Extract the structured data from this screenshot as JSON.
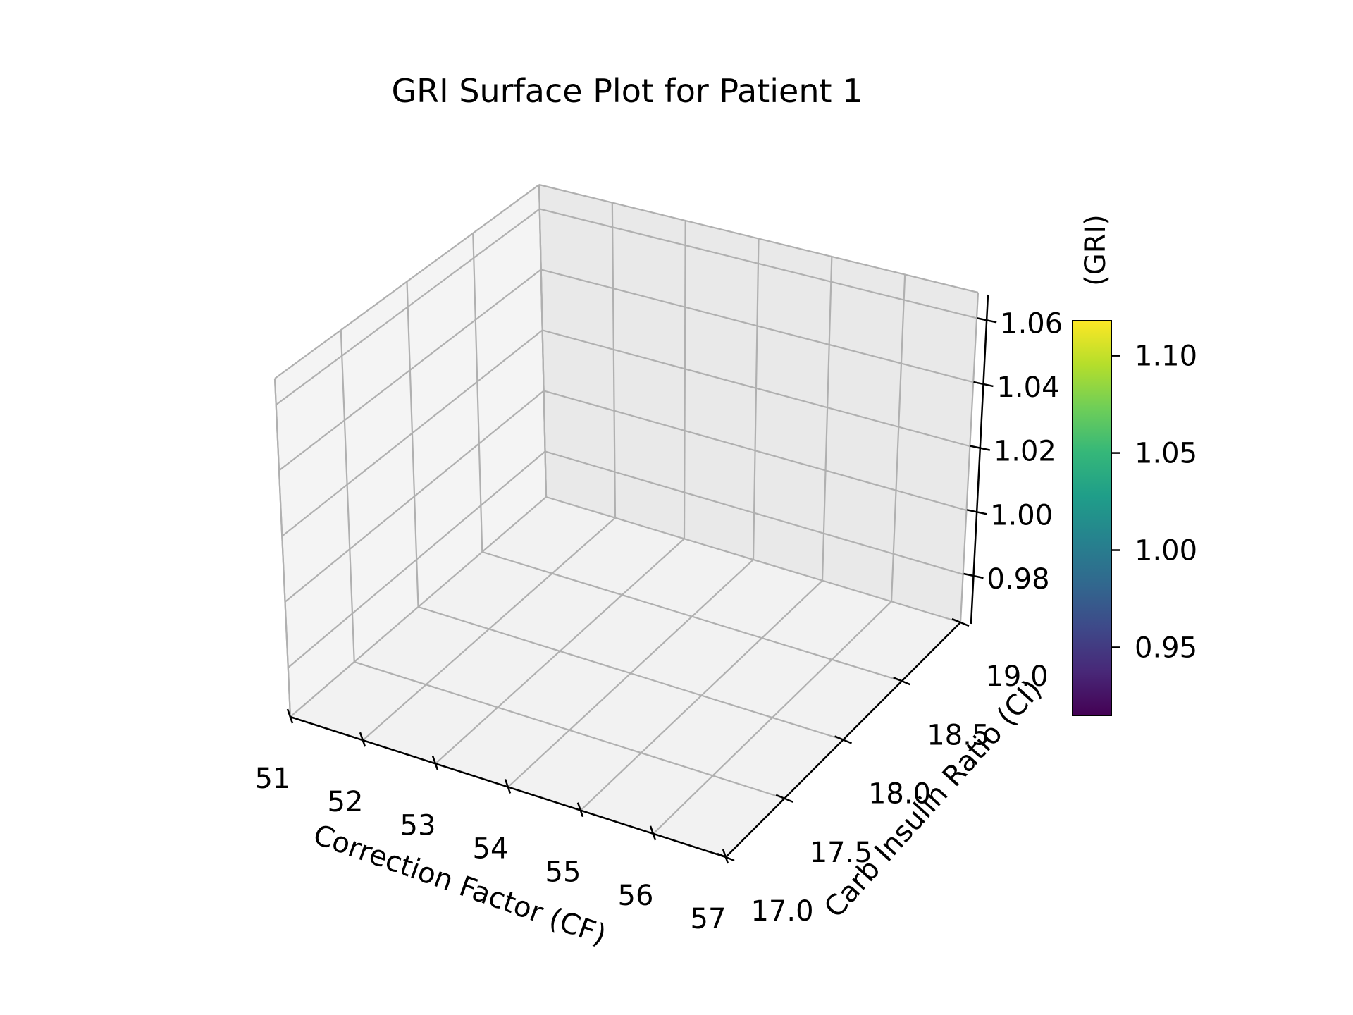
{
  "chart_data": {
    "type": "surface",
    "title": "GRI Surface Plot for Patient 1",
    "xlabel": "Correction Factor (CF)",
    "ylabel": "Carb Insulin Ratio (CI)",
    "zlabel": "(GRI)",
    "x_ticks": [
      "51",
      "52",
      "53",
      "54",
      "55",
      "56",
      "57"
    ],
    "y_ticks": [
      "17.0",
      "17.5",
      "18.0",
      "18.5",
      "19.0"
    ],
    "z_ticks": [
      "0.98",
      "1.00",
      "1.02",
      "1.04",
      "1.06"
    ],
    "xlim": [
      51,
      57
    ],
    "ylim": [
      17.0,
      19.0
    ],
    "zlim": [
      0.965,
      1.068
    ],
    "grid": true,
    "surface": "empty",
    "colorbar": {
      "colormap": "viridis",
      "range": [
        0.915,
        1.118
      ],
      "ticks": [
        "0.95",
        "1.00",
        "1.05",
        "1.10"
      ]
    }
  },
  "colors": {
    "pane_floor": "#f2f2f2",
    "pane_back": "#e9e9e9",
    "pane_side": "#f4f4f4",
    "grid": "#b0b0b0",
    "axis": "#000000",
    "viridis": [
      "#440154",
      "#482878",
      "#3e4989",
      "#31688e",
      "#26828e",
      "#1f9e89",
      "#35b779",
      "#6ece58",
      "#b5de2b",
      "#fde725"
    ]
  }
}
